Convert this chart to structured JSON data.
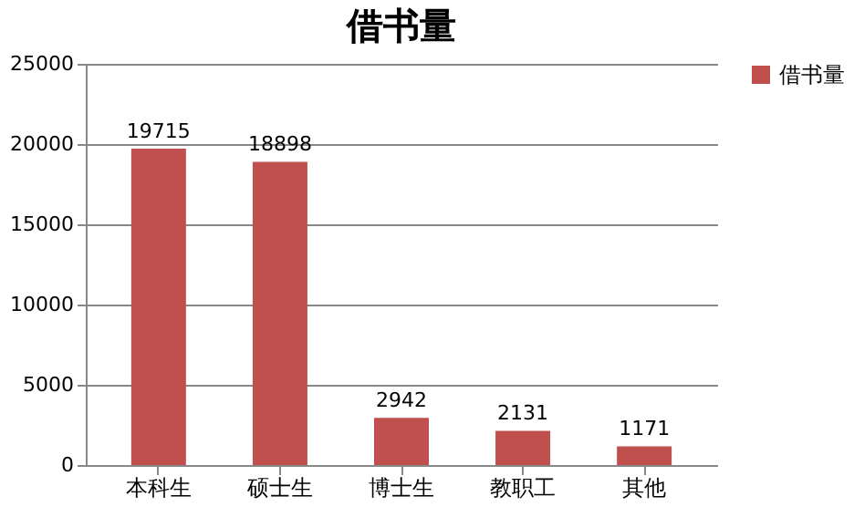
{
  "chart_data": {
    "type": "bar",
    "title": "借书量",
    "categories": [
      "本科生",
      "硕士生",
      "博士生",
      "教职工",
      "其他"
    ],
    "series": [
      {
        "name": "借书量",
        "color": "#c0504d",
        "values": [
          19715,
          18898,
          2942,
          2131,
          1171
        ]
      }
    ],
    "ylim": [
      0,
      25000
    ],
    "yticks": [
      0,
      5000,
      10000,
      15000,
      20000,
      25000
    ],
    "grid": "y",
    "legend": "right",
    "data_labels": true
  }
}
